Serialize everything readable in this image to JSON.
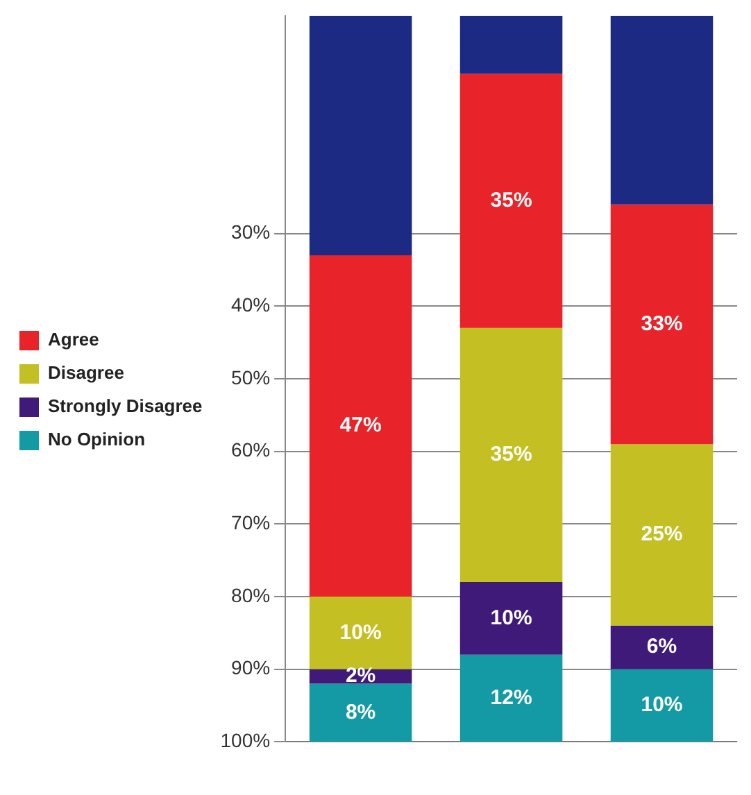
{
  "chart_data": {
    "type": "bar",
    "stacked": true,
    "categories": [
      null,
      null,
      null
    ],
    "series": [
      {
        "color": "#1c2a84",
        "values": [
          33,
          8,
          26
        ],
        "value_labels": [
          null,
          null,
          null
        ]
      },
      {
        "name": "Agree",
        "color": "#e8232a",
        "values": [
          47,
          35,
          33
        ],
        "value_labels": [
          "47%",
          "35%",
          "33%"
        ]
      },
      {
        "name": "Disagree",
        "color": "#c4bf22",
        "values": [
          10,
          35,
          25
        ],
        "value_labels": [
          "10%",
          "35%",
          "25%"
        ]
      },
      {
        "name": "Strongly Disagree",
        "color": "#3f1a78",
        "values": [
          2,
          10,
          6
        ],
        "value_labels": [
          "2%",
          "10%",
          "6%"
        ]
      },
      {
        "name": "No Opinion",
        "color": "#149aa5",
        "values": [
          8,
          12,
          10
        ],
        "value_labels": [
          "8%",
          "12%",
          "10%"
        ]
      }
    ],
    "ylim": [
      100,
      0
    ],
    "yticks": [
      {
        "value": 30,
        "label": "30%"
      },
      {
        "value": 40,
        "label": "40%"
      },
      {
        "value": 50,
        "label": "50%"
      },
      {
        "value": 60,
        "label": "60%"
      },
      {
        "value": 70,
        "label": "70%"
      },
      {
        "value": 80,
        "label": "80%"
      },
      {
        "value": 90,
        "label": "90%"
      },
      {
        "value": 100,
        "label": "100%"
      }
    ],
    "grid": "y",
    "legend": "left"
  }
}
